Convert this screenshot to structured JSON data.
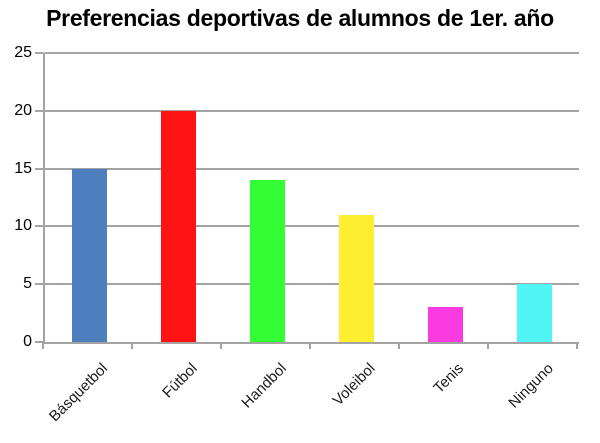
{
  "window": {
    "background": "#ffffff"
  },
  "chart_data": {
    "type": "bar",
    "title": "Preferencias deportivas de alumnos de 1er. año",
    "categories": [
      "Básquetbol",
      "Fútbol",
      "Handbol",
      "Voleibol",
      "Tenis",
      "Ninguno"
    ],
    "values": [
      15,
      20,
      14,
      11,
      3,
      5
    ],
    "bar_colors": [
      "#4d7fbe",
      "#fe1212",
      "#33fe33",
      "#fdee30",
      "#fb3be0",
      "#4ff5f5"
    ],
    "xlabel": "",
    "ylabel": "",
    "ylim": [
      0,
      25
    ],
    "yticks": [
      0,
      5,
      10,
      15,
      20,
      25
    ],
    "grid": true,
    "legend": false,
    "x_label_rotation_deg": -45,
    "axis_color": "#a3a3a3",
    "title_color": "#000000",
    "tick_label_color": "#000000",
    "category_label_color": "#1c1c1c"
  }
}
